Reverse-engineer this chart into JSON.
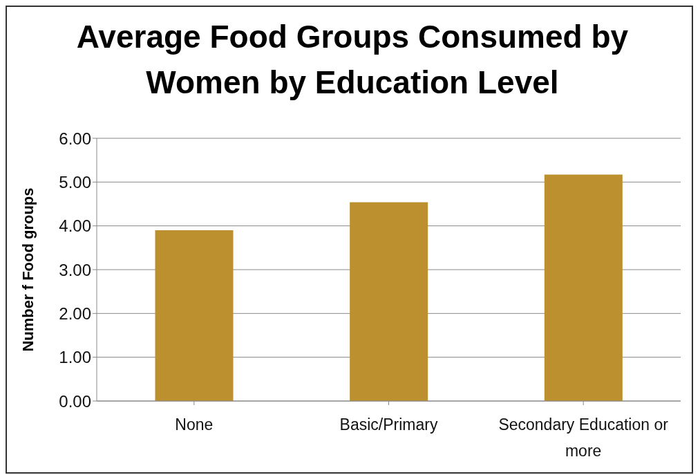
{
  "chart_data": {
    "type": "bar",
    "title": "Average Food Groups Consumed by Women by Education Level",
    "ylabel": "Number f Food groups",
    "categories": [
      "None",
      "Basic/Primary",
      "Secondary Education or more"
    ],
    "values": [
      3.9,
      4.54,
      5.17
    ],
    "color": "#bc8f2f",
    "ylim": [
      0,
      6
    ],
    "yticks": [
      {
        "value": 0,
        "label": "0.00"
      },
      {
        "value": 1,
        "label": "1.00"
      },
      {
        "value": 2,
        "label": "2.00"
      },
      {
        "value": 3,
        "label": "3.00"
      },
      {
        "value": 4,
        "label": "4.00"
      },
      {
        "value": 5,
        "label": "5.00"
      },
      {
        "value": 6,
        "label": "6.00"
      }
    ],
    "grid": "y"
  }
}
